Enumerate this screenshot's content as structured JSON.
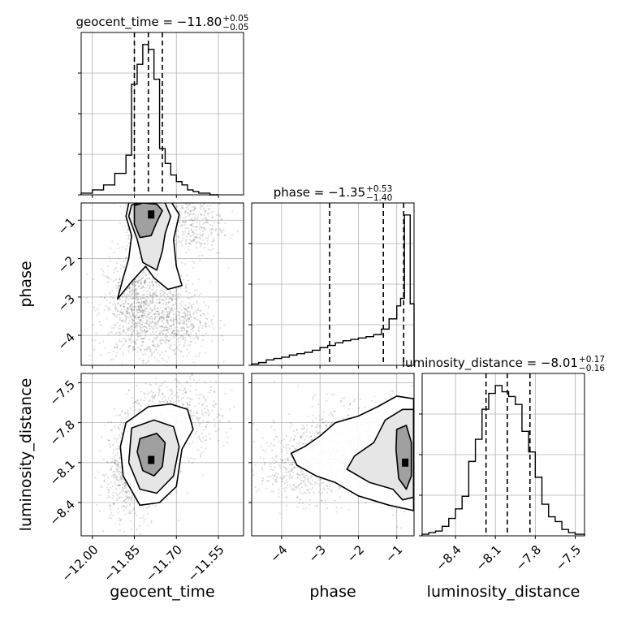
{
  "chart_data": {
    "type": "corner",
    "parameters": [
      "geocent_time",
      "phase",
      "luminosity_distance"
    ],
    "ranges": {
      "geocent_time": [
        -12.04,
        -11.46
      ],
      "phase": [
        -4.78,
        -0.55
      ],
      "luminosity_distance": [
        -8.65,
        -7.43
      ]
    },
    "ticks": {
      "geocent_time": {
        "values": [
          -12.0,
          -11.85,
          -11.7,
          -11.55
        ],
        "labels": [
          "−12.00",
          "−11.85",
          "−11.70",
          "−11.55"
        ]
      },
      "phase": {
        "values": [
          -4,
          -3,
          -2,
          -1
        ],
        "labels": [
          "−4",
          "−3",
          "−2",
          "−1"
        ]
      },
      "luminosity_distance": {
        "values": [
          -8.4,
          -8.1,
          -7.8,
          -7.5
        ],
        "labels": [
          "−8.4",
          "−8.1",
          "−7.8",
          "−7.5"
        ]
      }
    },
    "titles": {
      "geocent_time": {
        "main": "geocent_time = −11.80",
        "sup": "+0.05",
        "sub": "−0.05"
      },
      "phase": {
        "main": "phase = −1.35",
        "sup": "+0.53",
        "sub": "−1.40"
      },
      "luminosity_distance": {
        "main": "luminosity_distance = −8.01",
        "sup": "+0.17",
        "sub": "−0.16"
      }
    },
    "quantiles": {
      "geocent_time": [
        -11.85,
        -11.8,
        -11.75
      ],
      "phase": [
        -2.75,
        -1.35,
        -0.82
      ],
      "luminosity_distance": [
        -8.17,
        -8.01,
        -7.84
      ]
    },
    "histograms": {
      "geocent_time": {
        "edges": [
          -12.04,
          -12.0,
          -11.96,
          -11.92,
          -11.88,
          -11.86,
          -11.84,
          -11.82,
          -11.8,
          -11.78,
          -11.76,
          -11.74,
          -11.72,
          -11.7,
          -11.68,
          -11.66,
          -11.64,
          -11.62,
          -11.6,
          -11.58,
          -11.55
        ],
        "counts": [
          1,
          3,
          6,
          13,
          24,
          67,
          79,
          91,
          88,
          70,
          28,
          19,
          12,
          8,
          6,
          3,
          2,
          1,
          1,
          0
        ]
      },
      "phase": {
        "edges": [
          -4.78,
          -4.6,
          -4.4,
          -4.2,
          -4.0,
          -3.8,
          -3.6,
          -3.4,
          -3.2,
          -3.0,
          -2.8,
          -2.6,
          -2.4,
          -2.2,
          -2.0,
          -1.8,
          -1.6,
          -1.4,
          -1.2,
          -1.0,
          -0.9,
          -0.8,
          -0.65,
          -0.55
        ],
        "counts": [
          2,
          4,
          8,
          10,
          12,
          15,
          17,
          19,
          22,
          26,
          29,
          33,
          36,
          38,
          40,
          42,
          45,
          53,
          68,
          87,
          98,
          220,
          90
        ]
      },
      "luminosity_distance": {
        "edges": [
          -8.65,
          -8.6,
          -8.55,
          -8.5,
          -8.45,
          -8.4,
          -8.35,
          -8.3,
          -8.25,
          -8.2,
          -8.15,
          -8.1,
          -8.05,
          -8.0,
          -7.95,
          -7.9,
          -7.85,
          -7.8,
          -7.75,
          -7.7,
          -7.65,
          -7.6,
          -7.55,
          -7.5,
          -7.43
        ],
        "counts": [
          1,
          2,
          3,
          6,
          11,
          17,
          25,
          47,
          61,
          80,
          90,
          95,
          91,
          88,
          83,
          66,
          53,
          37,
          20,
          12,
          9,
          4,
          2,
          1
        ]
      }
    },
    "scatter": {
      "phase_vs_geocent_time": {
        "clusters": [
          {
            "x": -11.8,
            "y": -1.2,
            "sx": 0.035,
            "sy": 0.55,
            "n": 600
          },
          {
            "x": -11.84,
            "y": -3.3,
            "sx": 0.06,
            "sy": 0.7,
            "n": 900
          },
          {
            "x": -11.7,
            "y": -3.6,
            "sx": 0.06,
            "sy": 0.5,
            "n": 500
          },
          {
            "x": -11.65,
            "y": -1.1,
            "sx": 0.06,
            "sy": 0.45,
            "n": 350
          }
        ],
        "peak": {
          "x": -11.79,
          "y": -0.85
        },
        "contours": [
          [
            [
              -11.85,
              -0.62
            ],
            [
              -11.82,
              -0.55
            ],
            [
              -11.77,
              -0.58
            ],
            [
              -11.75,
              -0.75
            ],
            [
              -11.77,
              -1.05
            ],
            [
              -11.79,
              -1.4
            ],
            [
              -11.83,
              -1.45
            ],
            [
              -11.85,
              -1.1
            ],
            [
              -11.85,
              -0.8
            ]
          ],
          [
            [
              -11.86,
              -0.6
            ],
            [
              -11.8,
              -0.48
            ],
            [
              -11.74,
              -0.55
            ],
            [
              -11.72,
              -0.9
            ],
            [
              -11.74,
              -1.35
            ],
            [
              -11.75,
              -1.8
            ],
            [
              -11.77,
              -2.3
            ],
            [
              -11.82,
              -2.1
            ],
            [
              -11.84,
              -1.5
            ],
            [
              -11.87,
              -0.9
            ]
          ],
          [
            [
              -11.87,
              -0.55
            ],
            [
              -11.8,
              -0.45
            ],
            [
              -11.72,
              -0.5
            ],
            [
              -11.69,
              -0.85
            ],
            [
              -11.71,
              -1.5
            ],
            [
              -11.7,
              -2.2
            ],
            [
              -11.68,
              -2.7
            ],
            [
              -11.73,
              -2.8
            ],
            [
              -11.78,
              -2.5
            ],
            [
              -11.81,
              -2.2
            ],
            [
              -11.86,
              -2.6
            ],
            [
              -11.91,
              -3.05
            ],
            [
              -11.89,
              -2.5
            ],
            [
              -11.87,
              -2.0
            ],
            [
              -11.86,
              -1.4
            ],
            [
              -11.88,
              -0.9
            ]
          ]
        ]
      },
      "luminosity_distance_vs_geocent_time": {
        "clusters": [
          {
            "x": -11.82,
            "y": -8.05,
            "sx": 0.05,
            "sy": 0.16,
            "n": 1100
          },
          {
            "x": -11.7,
            "y": -7.75,
            "sx": 0.08,
            "sy": 0.14,
            "n": 500
          },
          {
            "x": -11.88,
            "y": -8.25,
            "sx": 0.05,
            "sy": 0.15,
            "n": 300
          }
        ],
        "peak": {
          "x": -11.79,
          "y": -8.08
        },
        "contours": [
          [
            [
              -11.83,
              -7.92
            ],
            [
              -11.77,
              -7.88
            ],
            [
              -11.74,
              -7.95
            ],
            [
              -11.75,
              -8.13
            ],
            [
              -11.78,
              -8.2
            ],
            [
              -11.82,
              -8.16
            ],
            [
              -11.84,
              -8.02
            ]
          ],
          [
            [
              -11.86,
              -7.84
            ],
            [
              -11.78,
              -7.78
            ],
            [
              -11.71,
              -7.83
            ],
            [
              -11.69,
              -7.98
            ],
            [
              -11.71,
              -8.2
            ],
            [
              -11.77,
              -8.33
            ],
            [
              -11.83,
              -8.3
            ],
            [
              -11.87,
              -8.1
            ]
          ],
          [
            [
              -11.88,
              -7.8
            ],
            [
              -11.8,
              -7.68
            ],
            [
              -11.72,
              -7.66
            ],
            [
              -11.66,
              -7.7
            ],
            [
              -11.64,
              -7.85
            ],
            [
              -11.68,
              -8.0
            ],
            [
              -11.7,
              -8.28
            ],
            [
              -11.76,
              -8.4
            ],
            [
              -11.83,
              -8.42
            ],
            [
              -11.89,
              -8.2
            ],
            [
              -11.9,
              -7.98
            ]
          ]
        ]
      },
      "luminosity_distance_vs_phase": {
        "clusters": [
          {
            "x": -0.9,
            "y": -8.05,
            "sx": 0.25,
            "sy": 0.16,
            "n": 900
          },
          {
            "x": -2.3,
            "y": -8.0,
            "sx": 0.8,
            "sy": 0.16,
            "n": 900
          },
          {
            "x": -3.6,
            "y": -8.15,
            "sx": 0.5,
            "sy": 0.13,
            "n": 300
          }
        ],
        "peak": {
          "x": -0.78,
          "y": -8.1
        },
        "contours": [
          [
            [
              -1.0,
              -7.85
            ],
            [
              -0.75,
              -7.82
            ],
            [
              -0.62,
              -7.95
            ],
            [
              -0.62,
              -8.2
            ],
            [
              -0.75,
              -8.3
            ],
            [
              -0.95,
              -8.22
            ],
            [
              -1.02,
              -8.0
            ]
          ],
          [
            [
              -1.3,
              -7.78
            ],
            [
              -0.85,
              -7.7
            ],
            [
              -0.56,
              -7.7
            ],
            [
              -0.56,
              -8.36
            ],
            [
              -0.85,
              -8.38
            ],
            [
              -1.1,
              -8.3
            ],
            [
              -1.7,
              -8.25
            ],
            [
              -2.3,
              -8.15
            ],
            [
              -2.1,
              -8.05
            ],
            [
              -1.6,
              -7.95
            ]
          ],
          [
            [
              -3.4,
              -7.98
            ],
            [
              -3.0,
              -7.9
            ],
            [
              -2.6,
              -7.8
            ],
            [
              -2.0,
              -7.75
            ],
            [
              -1.5,
              -7.68
            ],
            [
              -1.0,
              -7.6
            ],
            [
              -0.56,
              -7.62
            ],
            [
              -0.56,
              -8.46
            ],
            [
              -1.2,
              -8.42
            ],
            [
              -2.0,
              -8.35
            ],
            [
              -2.6,
              -8.25
            ],
            [
              -3.1,
              -8.2
            ],
            [
              -3.6,
              -8.12
            ],
            [
              -3.75,
              -8.03
            ]
          ]
        ]
      }
    },
    "grid": true
  }
}
